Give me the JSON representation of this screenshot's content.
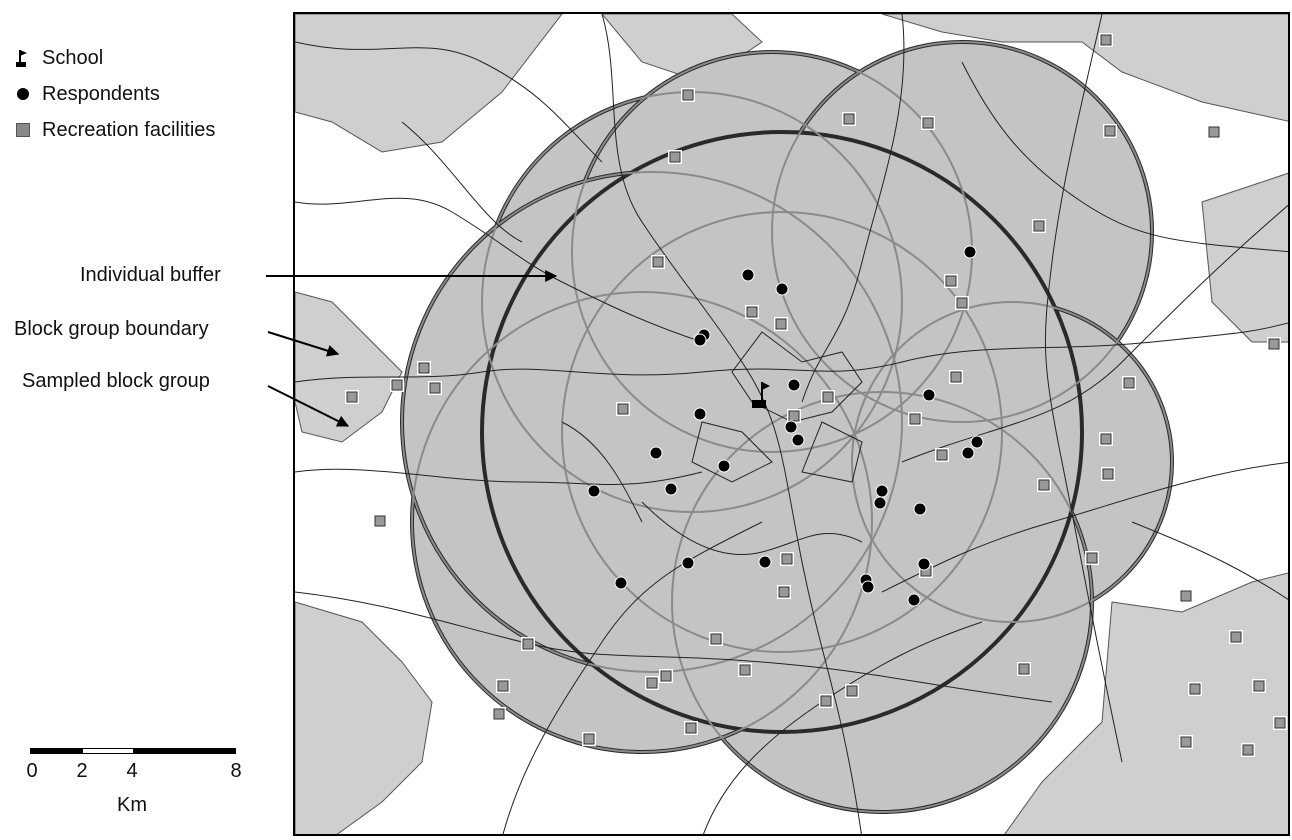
{
  "legend": {
    "items": [
      {
        "label": "School",
        "icon": "school-flag-icon"
      },
      {
        "label": "Respondents",
        "icon": "black-dot-icon"
      },
      {
        "label": "Recreation facilities",
        "icon": "gray-square-icon"
      }
    ]
  },
  "annotations": {
    "buffer": "Individual buffer",
    "boundary": "Block group boundary",
    "sampled": "Sampled block group"
  },
  "scale": {
    "ticks": [
      "0",
      "2",
      "4",
      "8"
    ],
    "unit": "Km"
  },
  "colors": {
    "buffer_fill": "#c4c4c4",
    "area_gray": "#cfcfcf",
    "circle_stroke": "#8a8a8a",
    "outline": "#2a2a2a",
    "facility_fill": "#999999"
  }
}
